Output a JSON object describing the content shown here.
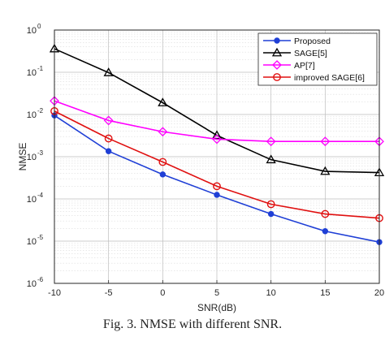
{
  "chart_data": {
    "type": "line",
    "title": "",
    "xlabel": "SNR(dB)",
    "ylabel": "NMSE",
    "xlim": [
      -10,
      20
    ],
    "ylim": [
      1e-06,
      1
    ],
    "yscale": "log",
    "grid": true,
    "legend_position": "top-right",
    "x": [
      -10,
      -5,
      0,
      5,
      10,
      15,
      20
    ],
    "x_ticks": [
      "-10",
      "-5",
      "0",
      "5",
      "10",
      "15",
      "20"
    ],
    "y_ticks": [
      {
        "base": "10",
        "exp": "0"
      },
      {
        "base": "10",
        "exp": "-1"
      },
      {
        "base": "10",
        "exp": "-2"
      },
      {
        "base": "10",
        "exp": "-3"
      },
      {
        "base": "10",
        "exp": "-4"
      },
      {
        "base": "10",
        "exp": "-5"
      },
      {
        "base": "10",
        "exp": "-6"
      }
    ],
    "series": [
      {
        "name": "Proposed",
        "color": "#1f3fd6",
        "marker": "dot",
        "values": [
          0.0095,
          0.00135,
          0.00038,
          0.000125,
          4.4e-05,
          1.72e-05,
          9.5e-06
        ]
      },
      {
        "name": "SAGE[5]",
        "color": "#000000",
        "marker": "triangle",
        "values": [
          0.36,
          0.098,
          0.019,
          0.0032,
          0.00085,
          0.00045,
          0.00042
        ]
      },
      {
        "name": "AP[7]",
        "color": "#ff00ff",
        "marker": "diamond",
        "values": [
          0.021,
          0.0072,
          0.0039,
          0.0026,
          0.0023,
          0.0023,
          0.0023
        ]
      },
      {
        "name": "improved SAGE[6]",
        "color": "#e01010",
        "marker": "circle",
        "values": [
          0.012,
          0.0027,
          0.00075,
          0.0002,
          7.5e-05,
          4.4e-05,
          3.5e-05
        ]
      }
    ]
  },
  "caption": "Fig. 3. NMSE with different SNR."
}
